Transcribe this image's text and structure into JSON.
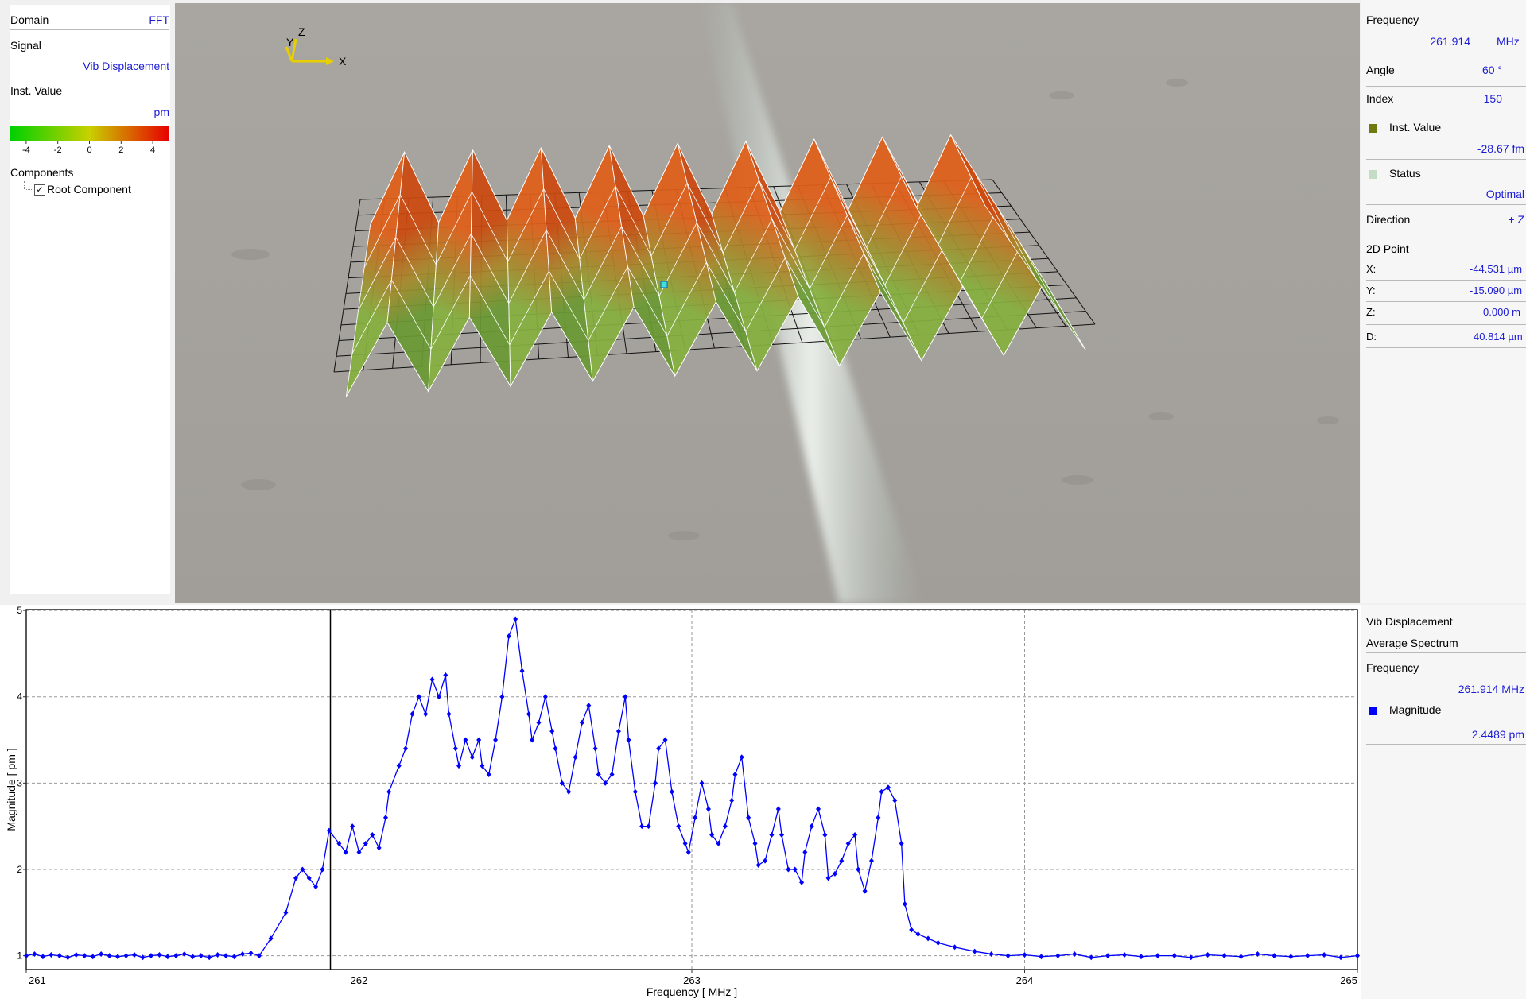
{
  "left_panel": {
    "domain": {
      "label": "Domain",
      "value": "FFT"
    },
    "signal": {
      "label": "Signal",
      "value": "Vib Displacement"
    },
    "inst_value": {
      "label": "Inst. Value",
      "unit": "pm"
    },
    "colorbar": {
      "lim": [
        -5,
        5
      ],
      "ticks": [
        -4,
        -2,
        0,
        2,
        4
      ],
      "colors": [
        "#00d000",
        "#c8d000",
        "#e80000"
      ]
    },
    "components": {
      "label": "Components",
      "items": [
        {
          "name": "Root Component",
          "checked": true
        }
      ]
    }
  },
  "view": {
    "axes": {
      "z": "Z",
      "y": "Y",
      "x": "X"
    }
  },
  "info_panel": {
    "frequency": {
      "label": "Frequency",
      "value": "261.914",
      "unit": "MHz"
    },
    "angle": {
      "label": "Angle",
      "value": "60 °"
    },
    "index": {
      "label": "Index",
      "value": "150"
    },
    "inst_value": {
      "label": "Inst. Value",
      "value": "-28.67 fm",
      "color": "#6f7a10"
    },
    "status": {
      "label": "Status",
      "value": "Optimal",
      "color": "#c4dcc4"
    },
    "direction": {
      "label": "Direction",
      "value": "+ Z"
    },
    "point_2d": {
      "label": "2D Point",
      "x": {
        "label": "X:",
        "value": "-44.531 µm"
      },
      "y": {
        "label": "Y:",
        "value": "-15.090 µm"
      },
      "z": {
        "label": "Z:",
        "value": "0.000 m"
      },
      "d": {
        "label": "D:",
        "value": "40.814 µm"
      }
    }
  },
  "chart_data": {
    "type": "line",
    "x_label": "Frequency [ MHz ]",
    "y_label": "Magnitude [ pm ]",
    "xlim": [
      261,
      265
    ],
    "xticks": [
      261,
      262,
      263,
      264,
      265
    ],
    "ylim": [
      0.84,
      5.01
    ],
    "yticks": [
      1,
      2,
      3,
      4,
      5
    ],
    "grid": true,
    "color": "#0000ff",
    "cursor": 261.914,
    "x": [
      261,
      261.025,
      261.05,
      261.075,
      261.1,
      261.125,
      261.15,
      261.175,
      261.2,
      261.225,
      261.25,
      261.275,
      261.3,
      261.325,
      261.35,
      261.375,
      261.4,
      261.425,
      261.45,
      261.475,
      261.5,
      261.525,
      261.55,
      261.575,
      261.6,
      261.625,
      261.65,
      261.675,
      261.7,
      261.735,
      261.78,
      261.81,
      261.83,
      261.85,
      261.87,
      261.89,
      261.91,
      261.94,
      261.96,
      261.98,
      262,
      262.02,
      262.04,
      262.06,
      262.08,
      262.09,
      262.12,
      262.14,
      262.16,
      262.18,
      262.2,
      262.22,
      262.24,
      262.26,
      262.27,
      262.29,
      262.3,
      262.32,
      262.34,
      262.36,
      262.37,
      262.39,
      262.41,
      262.43,
      262.45,
      262.47,
      262.49,
      262.51,
      262.52,
      262.54,
      262.56,
      262.58,
      262.59,
      262.61,
      262.63,
      262.65,
      262.67,
      262.69,
      262.71,
      262.72,
      262.74,
      262.76,
      262.78,
      262.8,
      262.81,
      262.83,
      262.85,
      262.87,
      262.89,
      262.9,
      262.92,
      262.94,
      262.96,
      262.98,
      262.99,
      263.01,
      263.03,
      263.05,
      263.06,
      263.08,
      263.1,
      263.12,
      263.13,
      263.15,
      263.17,
      263.19,
      263.2,
      263.22,
      263.24,
      263.26,
      263.27,
      263.29,
      263.31,
      263.33,
      263.34,
      263.36,
      263.38,
      263.4,
      263.41,
      263.43,
      263.45,
      263.47,
      263.49,
      263.5,
      263.52,
      263.54,
      263.56,
      263.57,
      263.59,
      263.61,
      263.63,
      263.64,
      263.66,
      263.68,
      263.71,
      263.74,
      263.79,
      263.85,
      263.9,
      263.95,
      264,
      264.05,
      264.1,
      264.15,
      264.2,
      264.25,
      264.3,
      264.35,
      264.4,
      264.45,
      264.5,
      264.55,
      264.6,
      264.65,
      264.7,
      264.75,
      264.8,
      264.85,
      264.9,
      264.95,
      265
    ],
    "values": [
      1.0,
      1.02,
      0.99,
      1.01,
      1.0,
      0.98,
      1.01,
      1.0,
      0.99,
      1.02,
      1.0,
      0.99,
      1.0,
      1.01,
      0.98,
      1.0,
      1.01,
      0.99,
      1.0,
      1.02,
      0.99,
      1.0,
      0.98,
      1.01,
      1.0,
      0.99,
      1.02,
      1.03,
      1.0,
      1.2,
      1.5,
      1.9,
      2.0,
      1.9,
      1.8,
      2.0,
      2.45,
      2.3,
      2.2,
      2.5,
      2.2,
      2.3,
      2.4,
      2.25,
      2.6,
      2.9,
      3.2,
      3.4,
      3.8,
      4.0,
      3.8,
      4.2,
      4.0,
      4.25,
      3.8,
      3.4,
      3.2,
      3.5,
      3.3,
      3.5,
      3.2,
      3.1,
      3.5,
      4.0,
      4.7,
      4.9,
      4.3,
      3.8,
      3.5,
      3.7,
      4.0,
      3.6,
      3.4,
      3.0,
      2.9,
      3.3,
      3.7,
      3.9,
      3.4,
      3.1,
      3.0,
      3.1,
      3.6,
      4.0,
      3.5,
      2.9,
      2.5,
      2.5,
      3.0,
      3.4,
      3.5,
      2.9,
      2.5,
      2.3,
      2.2,
      2.6,
      3.0,
      2.7,
      2.4,
      2.3,
      2.5,
      2.8,
      3.1,
      3.3,
      2.6,
      2.3,
      2.05,
      2.1,
      2.4,
      2.7,
      2.4,
      2.0,
      2.0,
      1.85,
      2.2,
      2.5,
      2.7,
      2.4,
      1.9,
      1.95,
      2.1,
      2.3,
      2.4,
      2.0,
      1.75,
      2.1,
      2.6,
      2.9,
      2.95,
      2.8,
      2.3,
      1.6,
      1.3,
      1.25,
      1.2,
      1.15,
      1.1,
      1.05,
      1.02,
      1.0,
      1.01,
      0.99,
      1.0,
      1.02,
      0.98,
      1.0,
      1.01,
      0.99,
      1.0,
      1.0,
      0.98,
      1.01,
      1.0,
      0.99,
      1.02,
      1.0,
      0.99,
      1.0,
      1.01,
      0.98,
      1.0
    ]
  },
  "legend_panel": {
    "signal": "Vib Displacement",
    "mode": "Average Spectrum",
    "frequency": {
      "label": "Frequency",
      "value": "261.914 MHz"
    },
    "magnitude": {
      "label": "Magnitude",
      "value": "2.4489 pm",
      "color": "#0000ff"
    }
  }
}
